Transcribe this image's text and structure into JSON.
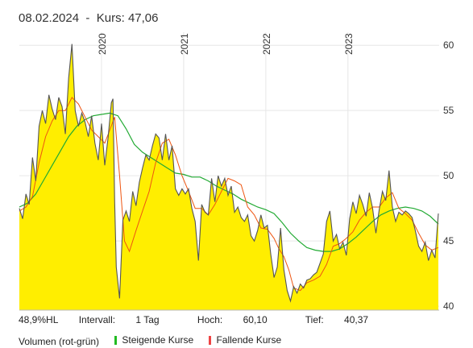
{
  "header": {
    "date": "08.02.2024",
    "separator": "-",
    "price_label": "Kurs:",
    "price_value": "47,06"
  },
  "stats": {
    "range": "48,9%HL",
    "interval_label": "Intervall:",
    "interval_value": "1 Tag",
    "high_label": "Hoch:",
    "high_value": "60,10",
    "low_label": "Tief:",
    "low_value": "40,37"
  },
  "legend": {
    "volume": "Volumen (rot-grün)",
    "rising": "Steigende Kurse",
    "falling": "Fallende Kurse",
    "rising_color": "#22bb22",
    "falling_color": "#ee4444"
  },
  "colors": {
    "area_fill": "#ffee00",
    "price_line": "#555555",
    "ma_short": "#ee5511",
    "ma_long": "#22aa33",
    "grid": "#e6e6e6"
  },
  "chart_data": {
    "type": "area",
    "x_range": [
      2019.0,
      2024.11
    ],
    "ylim": [
      39.7,
      61.0
    ],
    "y_ticks": [
      40,
      45,
      50,
      55,
      60
    ],
    "x_ticks": [
      {
        "x": 2020,
        "label": "2020"
      },
      {
        "x": 2021,
        "label": "2021"
      },
      {
        "x": 2022,
        "label": "2022"
      },
      {
        "x": 2023,
        "label": "2023"
      }
    ],
    "grid": true,
    "series": [
      {
        "role": "price",
        "x": [
          2019.0,
          2019.04,
          2019.08,
          2019.12,
          2019.16,
          2019.2,
          2019.24,
          2019.28,
          2019.32,
          2019.36,
          2019.4,
          2019.44,
          2019.48,
          2019.52,
          2019.56,
          2019.6,
          2019.64,
          2019.68,
          2019.72,
          2019.76,
          2019.8,
          2019.84,
          2019.88,
          2019.92,
          2019.96,
          2020.0,
          2020.04,
          2020.08,
          2020.12,
          2020.14,
          2020.16,
          2020.18,
          2020.22,
          2020.26,
          2020.3,
          2020.34,
          2020.38,
          2020.42,
          2020.46,
          2020.5,
          2020.54,
          2020.58,
          2020.62,
          2020.66,
          2020.7,
          2020.74,
          2020.78,
          2020.82,
          2020.86,
          2020.9,
          2020.94,
          2020.98,
          2021.02,
          2021.06,
          2021.1,
          2021.14,
          2021.18,
          2021.22,
          2021.26,
          2021.3,
          2021.34,
          2021.38,
          2021.42,
          2021.46,
          2021.5,
          2021.54,
          2021.58,
          2021.62,
          2021.66,
          2021.7,
          2021.74,
          2021.78,
          2021.82,
          2021.86,
          2021.9,
          2021.94,
          2021.98,
          2022.02,
          2022.06,
          2022.1,
          2022.14,
          2022.18,
          2022.22,
          2022.26,
          2022.3,
          2022.34,
          2022.38,
          2022.42,
          2022.46,
          2022.5,
          2022.54,
          2022.58,
          2022.62,
          2022.66,
          2022.7,
          2022.74,
          2022.78,
          2022.82,
          2022.86,
          2022.9,
          2022.94,
          2022.98,
          2023.02,
          2023.06,
          2023.1,
          2023.14,
          2023.18,
          2023.22,
          2023.26,
          2023.3,
          2023.34,
          2023.38,
          2023.42,
          2023.46,
          2023.5,
          2023.54,
          2023.58,
          2023.62,
          2023.66,
          2023.7,
          2023.74,
          2023.78,
          2023.82,
          2023.86,
          2023.9,
          2023.94,
          2023.98,
          2024.02,
          2024.06,
          2024.1
        ],
        "values": [
          47.5,
          46.7,
          48.6,
          47.8,
          51.4,
          49.6,
          53.8,
          55.0,
          54.0,
          56.2,
          55.1,
          54.3,
          56.0,
          55.3,
          53.2,
          57.5,
          60.1,
          55.0,
          53.8,
          54.8,
          54.1,
          53.0,
          54.6,
          52.5,
          51.2,
          54.0,
          50.8,
          52.9,
          55.6,
          55.9,
          48.0,
          43.0,
          40.6,
          46.6,
          47.3,
          46.5,
          48.8,
          47.7,
          49.5,
          50.6,
          51.6,
          51.2,
          52.3,
          53.2,
          52.9,
          51.2,
          53.2,
          51.2,
          52.3,
          49.0,
          48.5,
          49.0,
          48.6,
          49.0,
          47.5,
          46.5,
          43.5,
          47.8,
          47.2,
          47.0,
          49.8,
          48.0,
          50.0,
          49.2,
          49.8,
          48.5,
          49.2,
          47.2,
          47.6,
          46.8,
          46.5,
          47.0,
          45.4,
          45.0,
          45.8,
          47.0,
          46.0,
          46.2,
          44.0,
          42.2,
          43.0,
          46.0,
          42.8,
          41.2,
          40.4,
          41.5,
          41.0,
          41.7,
          41.4,
          42.0,
          42.1,
          42.4,
          42.6,
          43.3,
          44.0,
          46.5,
          47.3,
          45.0,
          45.5,
          44.4,
          44.9,
          43.9,
          46.7,
          48.0,
          47.1,
          48.5,
          47.8,
          46.9,
          48.7,
          47.5,
          45.6,
          47.4,
          48.8,
          48.1,
          50.4,
          47.6,
          46.5,
          47.2,
          47.0,
          47.3,
          47.1,
          46.8,
          45.8,
          44.6,
          44.2,
          44.9,
          43.5,
          44.3,
          43.7,
          47.1
        ]
      },
      {
        "role": "moving-average-short",
        "x": [
          2019.0,
          2019.08,
          2019.16,
          2019.24,
          2019.32,
          2019.4,
          2019.48,
          2019.56,
          2019.64,
          2019.72,
          2019.8,
          2019.88,
          2019.96,
          2020.04,
          2020.1,
          2020.16,
          2020.22,
          2020.28,
          2020.34,
          2020.42,
          2020.5,
          2020.58,
          2020.66,
          2020.74,
          2020.82,
          2020.9,
          2020.98,
          2021.06,
          2021.14,
          2021.22,
          2021.3,
          2021.38,
          2021.46,
          2021.54,
          2021.62,
          2021.7,
          2021.78,
          2021.86,
          2021.94,
          2022.02,
          2022.1,
          2022.16,
          2022.22,
          2022.28,
          2022.34,
          2022.42,
          2022.5,
          2022.58,
          2022.66,
          2022.74,
          2022.82,
          2022.9,
          2022.98,
          2023.06,
          2023.14,
          2023.22,
          2023.3,
          2023.38,
          2023.46,
          2023.54,
          2023.62,
          2023.7,
          2023.78,
          2023.86,
          2023.94,
          2024.02,
          2024.1
        ],
        "values": [
          47.3,
          47.6,
          48.4,
          51.0,
          53.0,
          54.2,
          55.0,
          55.0,
          56.0,
          55.5,
          54.5,
          53.5,
          53.0,
          52.5,
          53.5,
          54.5,
          50.0,
          45.0,
          44.2,
          45.8,
          47.3,
          48.8,
          51.0,
          52.5,
          52.8,
          51.6,
          50.0,
          48.8,
          47.5,
          47.5,
          47.0,
          47.8,
          48.8,
          49.8,
          49.6,
          49.3,
          47.6,
          47.0,
          46.0,
          45.9,
          45.2,
          44.4,
          43.8,
          42.8,
          41.4,
          41.2,
          41.8,
          42.0,
          42.3,
          43.2,
          44.6,
          44.8,
          45.2,
          45.7,
          46.6,
          47.2,
          47.6,
          47.6,
          48.3,
          48.7,
          47.5,
          47.1,
          46.6,
          45.6,
          44.7,
          44.3,
          44.5
        ]
      },
      {
        "role": "moving-average-long",
        "x": [
          2019.0,
          2019.1,
          2019.2,
          2019.3,
          2019.4,
          2019.5,
          2019.6,
          2019.7,
          2019.8,
          2019.9,
          2020.0,
          2020.1,
          2020.2,
          2020.3,
          2020.4,
          2020.5,
          2020.6,
          2020.7,
          2020.8,
          2020.9,
          2021.0,
          2021.1,
          2021.2,
          2021.3,
          2021.4,
          2021.5,
          2021.6,
          2021.7,
          2021.8,
          2021.9,
          2022.0,
          2022.1,
          2022.2,
          2022.3,
          2022.4,
          2022.5,
          2022.6,
          2022.7,
          2022.8,
          2022.9,
          2023.0,
          2023.1,
          2023.2,
          2023.3,
          2023.4,
          2023.5,
          2023.6,
          2023.7,
          2023.8,
          2023.9,
          2024.0,
          2024.1
        ],
        "values": [
          47.6,
          47.9,
          48.6,
          49.7,
          50.8,
          51.9,
          53.0,
          53.8,
          54.3,
          54.6,
          54.7,
          54.8,
          54.6,
          53.6,
          52.4,
          51.8,
          51.4,
          51.0,
          50.6,
          50.2,
          50.1,
          49.9,
          49.9,
          49.6,
          49.2,
          48.9,
          48.6,
          48.2,
          47.9,
          47.6,
          47.4,
          47.1,
          46.4,
          45.6,
          45.0,
          44.5,
          44.3,
          44.2,
          44.2,
          44.4,
          44.8,
          45.3,
          45.9,
          46.5,
          47.0,
          47.3,
          47.5,
          47.6,
          47.5,
          47.3,
          46.9,
          46.3
        ]
      }
    ]
  }
}
